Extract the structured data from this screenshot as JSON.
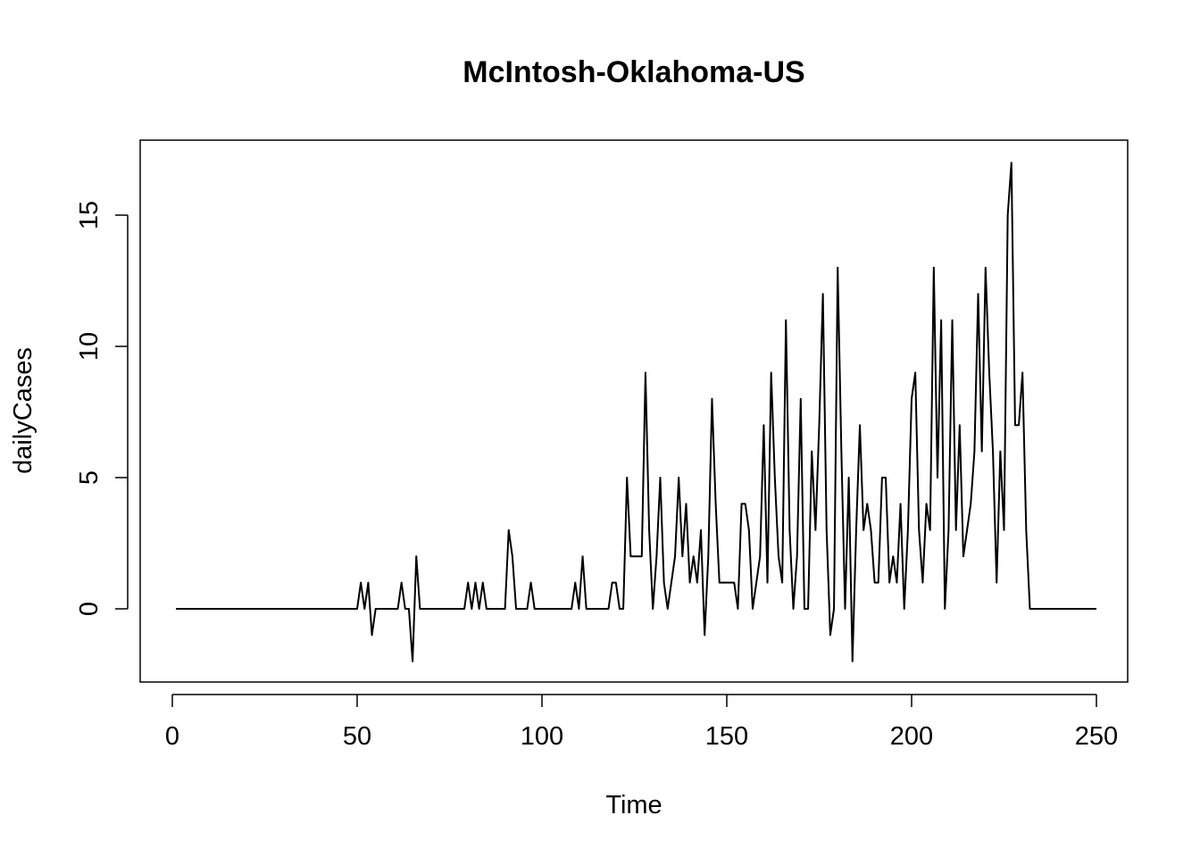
{
  "chart_data": {
    "type": "line",
    "title": "McIntosh-Oklahoma-US",
    "xlabel": "Time",
    "ylabel": "dailyCases",
    "xlim": [
      1,
      248
    ],
    "ylim": [
      -2,
      17
    ],
    "x_ticks": [
      0,
      50,
      100,
      150,
      200,
      250
    ],
    "x_tick_labels": [
      "0",
      "50",
      "100",
      "150",
      "200",
      "250"
    ],
    "y_ticks": [
      0,
      5,
      10,
      15
    ],
    "y_tick_labels": [
      "0",
      "5",
      "10",
      "15"
    ],
    "grid": false,
    "legend": "none",
    "line_color": "#000000",
    "series": [
      {
        "x_start": 1,
        "values": [
          0,
          0,
          0,
          0,
          0,
          0,
          0,
          0,
          0,
          0,
          0,
          0,
          0,
          0,
          0,
          0,
          0,
          0,
          0,
          0,
          0,
          0,
          0,
          0,
          0,
          0,
          0,
          0,
          0,
          0,
          0,
          0,
          0,
          0,
          0,
          0,
          0,
          0,
          0,
          0,
          0,
          0,
          0,
          0,
          0,
          0,
          0,
          0,
          0,
          0,
          1,
          0,
          1,
          -1,
          0,
          0,
          0,
          0,
          0,
          0,
          0,
          1,
          0,
          0,
          -2,
          2,
          0,
          0,
          0,
          0,
          0,
          0,
          0,
          0,
          0,
          0,
          0,
          0,
          0,
          1,
          0,
          1,
          0,
          1,
          0,
          0,
          0,
          0,
          0,
          0,
          3,
          2,
          0,
          0,
          0,
          0,
          1,
          0,
          0,
          0,
          0,
          0,
          0,
          0,
          0,
          0,
          0,
          0,
          1,
          0,
          2,
          0,
          0,
          0,
          0,
          0,
          0,
          0,
          1,
          1,
          0,
          0,
          5,
          2,
          2,
          2,
          2,
          9,
          3,
          0,
          2,
          5,
          1,
          0,
          1,
          2,
          5,
          2,
          4,
          1,
          2,
          1,
          3,
          -1,
          2,
          8,
          4,
          1,
          1,
          1,
          1,
          1,
          0,
          4,
          4,
          3,
          0,
          1,
          2,
          7,
          1,
          9,
          5,
          2,
          1,
          11,
          3,
          0,
          2,
          8,
          0,
          0,
          6,
          3,
          7,
          12,
          3,
          -1,
          0,
          13,
          6,
          0,
          5,
          -2,
          3,
          7,
          3,
          4,
          3,
          1,
          1,
          5,
          5,
          1,
          2,
          1,
          4,
          0,
          3,
          8,
          9,
          3,
          1,
          4,
          3,
          13,
          5,
          11,
          0,
          3,
          11,
          3,
          7,
          2,
          3,
          4,
          6,
          12,
          6,
          13,
          9,
          6,
          1,
          6,
          3,
          15,
          17,
          7,
          7,
          9,
          3,
          0,
          0,
          0,
          0,
          0,
          0,
          0,
          0,
          0,
          0,
          0,
          0,
          0,
          0,
          0,
          0,
          0,
          0,
          0
        ]
      }
    ]
  }
}
